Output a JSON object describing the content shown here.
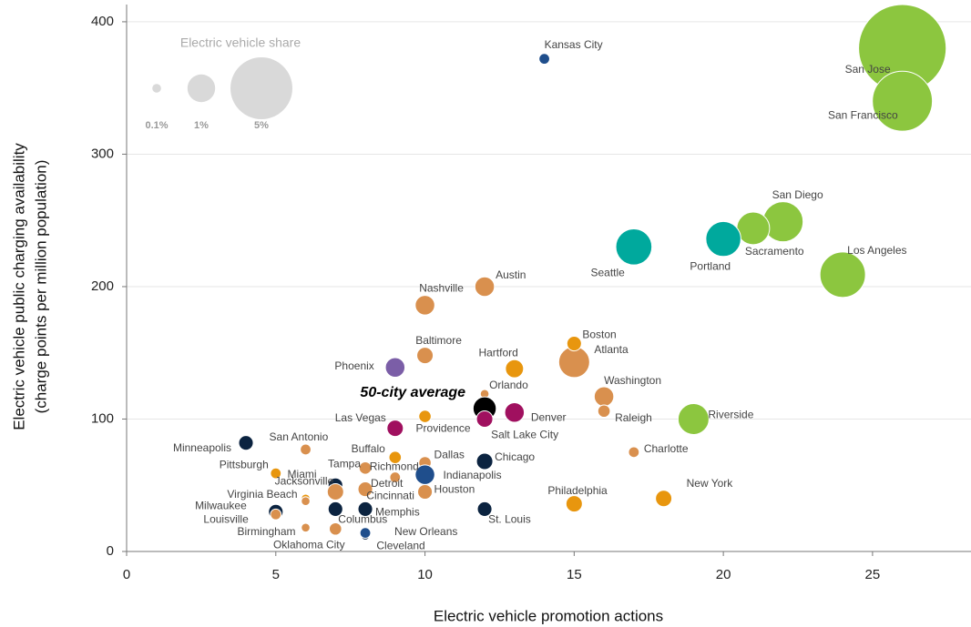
{
  "chart_data": {
    "type": "bubble",
    "x_label": "Electric vehicle promotion actions",
    "y_label": [
      "Electric vehicle public charging availability",
      "(charge points per million population)"
    ],
    "xlim": [
      0,
      28.3
    ],
    "ylim": [
      0,
      413
    ],
    "xticks": [
      0,
      5,
      10,
      15,
      20,
      25
    ],
    "yticks": [
      0,
      100,
      200,
      300,
      400
    ],
    "grid": true,
    "size_legend": {
      "title": "Electric vehicle share",
      "values": [
        0.1,
        1,
        5
      ],
      "value_labels": [
        "0.1%",
        "1%",
        "5%"
      ],
      "color": "#d9d9d9"
    },
    "points": [
      {
        "label": "San Jose",
        "x": 26,
        "y": 380,
        "size": 10,
        "color": "#8cc63f"
      },
      {
        "label": "San Francisco",
        "x": 26,
        "y": 340,
        "size": 4.7,
        "color": "#8cc63f"
      },
      {
        "label": "Los Angeles",
        "x": 24,
        "y": 209,
        "size": 2.7,
        "color": "#8cc63f"
      },
      {
        "label": "San Diego",
        "x": 22,
        "y": 249,
        "size": 2.1,
        "color": "#8cc63f"
      },
      {
        "label": "Sacramento",
        "x": 21,
        "y": 244,
        "size": 1.4,
        "color": "#8cc63f"
      },
      {
        "label": "Riverside",
        "x": 19,
        "y": 100,
        "size": 1.25,
        "color": "#8cc63f"
      },
      {
        "label": "Seattle",
        "x": 17,
        "y": 230,
        "size": 1.7,
        "color": "#00a99d"
      },
      {
        "label": "Portland",
        "x": 20,
        "y": 236,
        "size": 1.6,
        "color": "#00a99d"
      },
      {
        "label": "Atlanta",
        "x": 15,
        "y": 143,
        "size": 1.25,
        "color": "#d9904e"
      },
      {
        "label": "Kansas City",
        "x": 14,
        "y": 372,
        "size": 0.15,
        "color": "#1f4e8c"
      },
      {
        "label": "Austin",
        "x": 12,
        "y": 200,
        "size": 0.5,
        "color": "#d9904e"
      },
      {
        "label": "Nashville",
        "x": 10,
        "y": 186,
        "size": 0.5,
        "color": "#d9904e"
      },
      {
        "label": "Baltimore",
        "x": 10,
        "y": 148,
        "size": 0.35,
        "color": "#d9904e"
      },
      {
        "label": "Phoenix",
        "x": 9,
        "y": 139,
        "size": 0.5,
        "color": "#7b5ea7"
      },
      {
        "label": "Hartford",
        "x": 13,
        "y": 138,
        "size": 0.43,
        "color": "#e8960e"
      },
      {
        "label": "Boston",
        "x": 15,
        "y": 157,
        "size": 0.28,
        "color": "#e8960e"
      },
      {
        "label": "Washington",
        "x": 16,
        "y": 117,
        "size": 0.5,
        "color": "#d9904e"
      },
      {
        "label": "Raleigh",
        "x": 16,
        "y": 106,
        "size": 0.2,
        "color": "#d9904e"
      },
      {
        "label": "Orlando",
        "x": 12,
        "y": 119,
        "size": 0.1,
        "color": "#d9904e"
      },
      {
        "label": "50-city average",
        "x": 12,
        "y": 108,
        "size": 0.7,
        "color": "#000000"
      },
      {
        "label": "Salt Lake City",
        "x": 12,
        "y": 100,
        "size": 0.35,
        "color": "#a0105f"
      },
      {
        "label": "Denver",
        "x": 13,
        "y": 105,
        "size": 0.5,
        "color": "#a0105f"
      },
      {
        "label": "Las Vegas",
        "x": 9,
        "y": 93,
        "size": 0.35,
        "color": "#a0105f"
      },
      {
        "label": "Providence",
        "x": 10,
        "y": 102,
        "size": 0.2,
        "color": "#e8960e"
      },
      {
        "label": "Charlotte",
        "x": 17,
        "y": 75,
        "size": 0.15,
        "color": "#d9904e"
      },
      {
        "label": "Minneapolis",
        "x": 4,
        "y": 82,
        "size": 0.28,
        "color": "#0b2340"
      },
      {
        "label": "San Antonio",
        "x": 6,
        "y": 77,
        "size": 0.15,
        "color": "#d9904e"
      },
      {
        "label": "Buffalo",
        "x": 9,
        "y": 71,
        "size": 0.2,
        "color": "#e8960e"
      },
      {
        "label": "Dallas",
        "x": 10,
        "y": 67,
        "size": 0.2,
        "color": "#d9904e"
      },
      {
        "label": "Chicago",
        "x": 12,
        "y": 68,
        "size": 0.35,
        "color": "#0b2340"
      },
      {
        "label": "Pittsburgh",
        "x": 5,
        "y": 59,
        "size": 0.15,
        "color": "#e8960e"
      },
      {
        "label": "Miami",
        "x": 6,
        "y": 40,
        "size": 0.1,
        "color": "#e8960e"
      },
      {
        "label": "Tampa",
        "x": 8,
        "y": 63,
        "size": 0.2,
        "color": "#d9904e"
      },
      {
        "label": "Richmond",
        "x": 9,
        "y": 56,
        "size": 0.15,
        "color": "#d9904e"
      },
      {
        "label": "Indianapolis",
        "x": 10,
        "y": 58,
        "size": 0.5,
        "color": "#1f4e8c"
      },
      {
        "label": "Jacksonville",
        "x": 7,
        "y": 50,
        "size": 0.28,
        "color": "#0b2340"
      },
      {
        "label": "Detroit",
        "x": 8,
        "y": 47,
        "size": 0.28,
        "color": "#d9904e"
      },
      {
        "label": "Virginia Beach",
        "x": 6,
        "y": 38,
        "size": 0.1,
        "color": "#d9904e"
      },
      {
        "label": "Cincinnati",
        "x": 7,
        "y": 45,
        "size": 0.35,
        "color": "#d9904e"
      },
      {
        "label": "Houston",
        "x": 10,
        "y": 45,
        "size": 0.28,
        "color": "#d9904e"
      },
      {
        "label": "Philadelphia",
        "x": 15,
        "y": 36,
        "size": 0.35,
        "color": "#e8960e"
      },
      {
        "label": "New York",
        "x": 18,
        "y": 40,
        "size": 0.35,
        "color": "#e8960e"
      },
      {
        "label": "Milwaukee",
        "x": 5,
        "y": 30,
        "size": 0.28,
        "color": "#0b2340"
      },
      {
        "label": "Louisville",
        "x": 5,
        "y": 28,
        "size": 0.15,
        "color": "#d9904e"
      },
      {
        "label": "Columbus",
        "x": 7,
        "y": 32,
        "size": 0.28,
        "color": "#0b2340"
      },
      {
        "label": "Memphis",
        "x": 8,
        "y": 32,
        "size": 0.28,
        "color": "#0b2340"
      },
      {
        "label": "St. Louis",
        "x": 12,
        "y": 32,
        "size": 0.28,
        "color": "#0b2340"
      },
      {
        "label": "Birmingham",
        "x": 6,
        "y": 18,
        "size": 0.1,
        "color": "#d9904e"
      },
      {
        "label": "Oklahoma City",
        "x": 7,
        "y": 17,
        "size": 0.2,
        "color": "#d9904e"
      },
      {
        "label": "Cleveland",
        "x": 8,
        "y": 12,
        "size": 0.1,
        "color": "#0b2340"
      },
      {
        "label": "New Orleans",
        "x": 8,
        "y": 14,
        "size": 0.15,
        "color": "#1f4e8c"
      }
    ]
  }
}
